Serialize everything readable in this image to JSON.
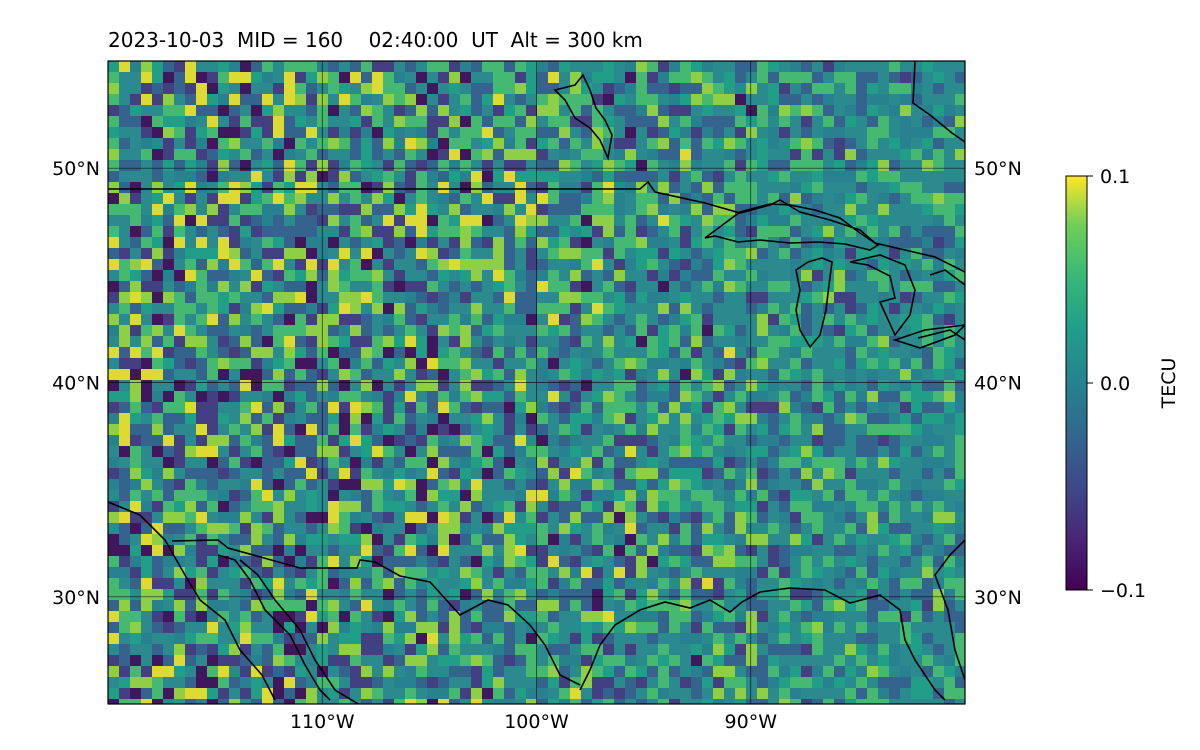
{
  "title": "2023-10-03  MID = 160    02:40:00  UT  Alt = 300 km",
  "map": {
    "projection": "PlateCarree",
    "lon_range": [
      -120,
      -80
    ],
    "lat_range": [
      25,
      55
    ],
    "gridlines": true,
    "lon_ticks": [
      -110,
      -100,
      -90
    ],
    "lat_ticks": [
      30,
      40,
      50
    ],
    "lon_tick_labels": [
      "110°W",
      "100°W",
      "90°W"
    ],
    "lat_tick_labels": [
      "30°N",
      "40°N",
      "50°N"
    ],
    "field": "TEC perturbation",
    "colormap": "viridis",
    "coastlines": true,
    "borders": true
  },
  "colorbar": {
    "label": "TECU",
    "min": -0.1,
    "max": 0.1,
    "ticks": [
      0.1,
      0.0,
      -0.1
    ],
    "tick_labels": [
      "0.1",
      "0.0",
      "−0.1"
    ]
  }
}
